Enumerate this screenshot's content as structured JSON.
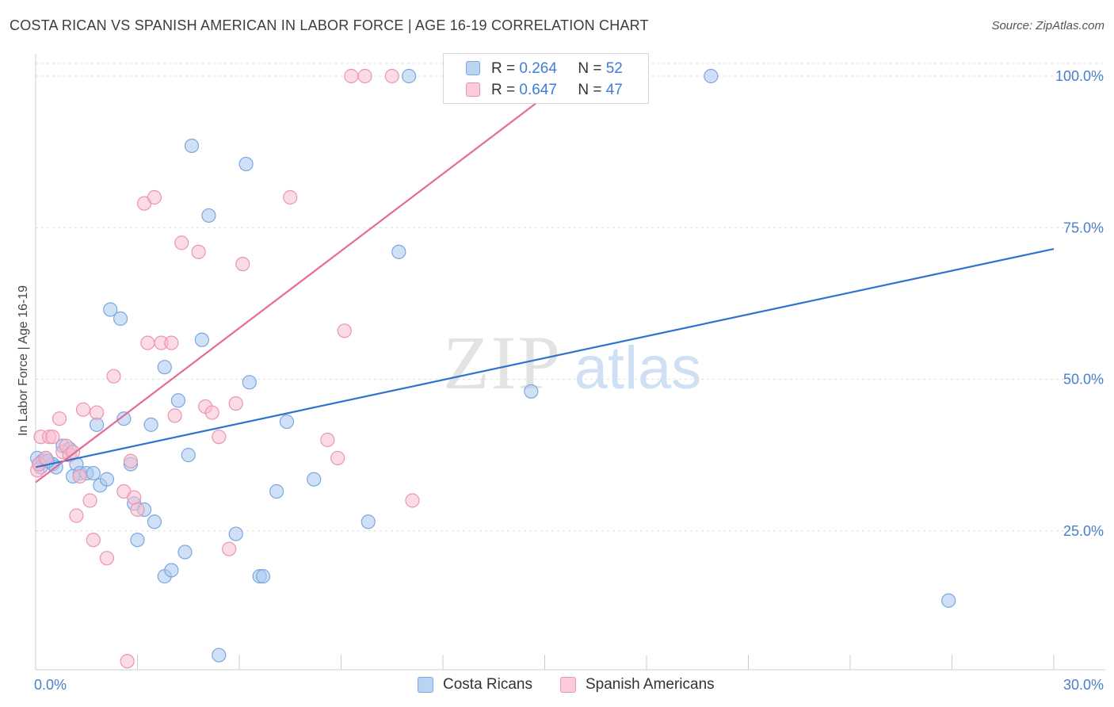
{
  "title": "COSTA RICAN VS SPANISH AMERICAN IN LABOR FORCE | AGE 16-19 CORRELATION CHART",
  "source": "Source: ZipAtlas.com",
  "watermark": {
    "zip": "ZIP",
    "atlas": "atlas"
  },
  "legend": {
    "rows": [
      {
        "r_label": "R =",
        "r_value": "0.264",
        "n_label": "N =",
        "n_value": "52"
      },
      {
        "r_label": "R =",
        "r_value": "0.647",
        "n_label": "N =",
        "n_value": "47"
      }
    ]
  },
  "bottom_legend": [
    "Costa Ricans",
    "Spanish Americans"
  ],
  "colors": {
    "blue_fill": "#a9c8f0",
    "blue_stroke": "#7aa7e0",
    "blue_line": "#2f72d0",
    "pink_fill": "#f8bed0",
    "pink_stroke": "#eb94b1",
    "pink_line": "#e46b96",
    "tick_text": "#4a7fcc",
    "grid": "#dddddd"
  },
  "chart_data": {
    "type": "scatter",
    "title": "COSTA RICAN VS SPANISH AMERICAN IN LABOR FORCE | AGE 16-19 CORRELATION CHART",
    "xlabel": "",
    "ylabel": "In Labor Force | Age 16-19",
    "xlim": [
      0,
      30
    ],
    "ylim": [
      0,
      100
    ],
    "x_tick_labels": [
      {
        "value": 0,
        "label": "0.0%"
      },
      {
        "value": 30,
        "label": "30.0%"
      }
    ],
    "y_tick_labels": [
      {
        "value": 25,
        "label": "25.0%"
      },
      {
        "value": 50,
        "label": "50.0%"
      },
      {
        "value": 75,
        "label": "75.0%"
      },
      {
        "value": 100,
        "label": "100.0%"
      }
    ],
    "grid": true,
    "legend_position": "top-center",
    "series": [
      {
        "name": "Costa Ricans",
        "r": 0.264,
        "n": 52,
        "trend": {
          "x": [
            0,
            30
          ],
          "y": [
            35.5,
            71.5
          ]
        },
        "points": [
          [
            0.05,
            37
          ],
          [
            0.1,
            36
          ],
          [
            0.2,
            36.5
          ],
          [
            0.3,
            37
          ],
          [
            0.5,
            36
          ],
          [
            0.6,
            35.5
          ],
          [
            0.8,
            39
          ],
          [
            1.0,
            38.5
          ],
          [
            1.2,
            36
          ],
          [
            1.3,
            34.5
          ],
          [
            1.5,
            34.5
          ],
          [
            1.7,
            34.5
          ],
          [
            1.8,
            42.5
          ],
          [
            1.9,
            32.5
          ],
          [
            2.1,
            33.5
          ],
          [
            2.2,
            61.5
          ],
          [
            2.5,
            60
          ],
          [
            2.6,
            43.5
          ],
          [
            2.8,
            36
          ],
          [
            2.9,
            29.5
          ],
          [
            3.0,
            23.5
          ],
          [
            3.2,
            28.5
          ],
          [
            3.4,
            42.5
          ],
          [
            3.5,
            26.5
          ],
          [
            3.8,
            52
          ],
          [
            3.8,
            17.5
          ],
          [
            4.0,
            18.5
          ],
          [
            4.2,
            46.5
          ],
          [
            4.4,
            21.5
          ],
          [
            4.5,
            37.5
          ],
          [
            4.6,
            88.5
          ],
          [
            4.9,
            56.5
          ],
          [
            5.1,
            77
          ],
          [
            5.4,
            4.5
          ],
          [
            5.9,
            24.5
          ],
          [
            6.2,
            85.5
          ],
          [
            6.3,
            49.5
          ],
          [
            6.6,
            17.5
          ],
          [
            6.7,
            17.5
          ],
          [
            7.1,
            31.5
          ],
          [
            7.4,
            43
          ],
          [
            8.2,
            33.5
          ],
          [
            9.8,
            26.5
          ],
          [
            10.7,
            71
          ],
          [
            11.0,
            100
          ],
          [
            12.3,
            100
          ],
          [
            14.6,
            48
          ],
          [
            19.9,
            100
          ],
          [
            26.9,
            13.5
          ],
          [
            0.15,
            35.5
          ],
          [
            0.35,
            36.5
          ],
          [
            1.1,
            34
          ]
        ]
      },
      {
        "name": "Spanish Americans",
        "r": 0.647,
        "n": 47,
        "trend": {
          "x": [
            0,
            15.8
          ],
          "y": [
            33,
            100
          ]
        },
        "points": [
          [
            0.05,
            35
          ],
          [
            0.1,
            36
          ],
          [
            0.15,
            40.5
          ],
          [
            0.4,
            40.5
          ],
          [
            0.5,
            40.5
          ],
          [
            0.7,
            43.5
          ],
          [
            0.8,
            38
          ],
          [
            0.9,
            39
          ],
          [
            1.0,
            37.5
          ],
          [
            1.2,
            27.5
          ],
          [
            1.3,
            34
          ],
          [
            1.4,
            45
          ],
          [
            1.6,
            30
          ],
          [
            1.7,
            23.5
          ],
          [
            1.8,
            44.5
          ],
          [
            2.1,
            20.5
          ],
          [
            2.3,
            50.5
          ],
          [
            2.6,
            31.5
          ],
          [
            2.7,
            3.5
          ],
          [
            2.8,
            36.5
          ],
          [
            2.9,
            30.5
          ],
          [
            3.0,
            28.5
          ],
          [
            3.2,
            79
          ],
          [
            3.3,
            56
          ],
          [
            3.5,
            80
          ],
          [
            3.7,
            56
          ],
          [
            4.0,
            56
          ],
          [
            4.1,
            44
          ],
          [
            4.3,
            72.5
          ],
          [
            4.8,
            71
          ],
          [
            5.0,
            45.5
          ],
          [
            5.2,
            44.5
          ],
          [
            5.4,
            40.5
          ],
          [
            5.7,
            22
          ],
          [
            5.9,
            46
          ],
          [
            6.1,
            69
          ],
          [
            7.5,
            80
          ],
          [
            8.6,
            40
          ],
          [
            8.9,
            37
          ],
          [
            9.1,
            58
          ],
          [
            9.3,
            100
          ],
          [
            9.7,
            100
          ],
          [
            10.5,
            100
          ],
          [
            11.1,
            30
          ],
          [
            15.3,
            100
          ],
          [
            0.3,
            37
          ],
          [
            1.1,
            38
          ]
        ]
      }
    ]
  }
}
